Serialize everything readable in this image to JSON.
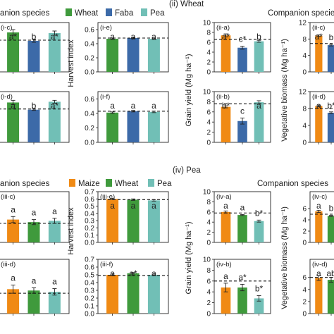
{
  "colors": {
    "Maize": "#f08a14",
    "Wheat": "#3f9a3c",
    "Faba": "#3c6aa8",
    "Pea": "#71bfb6"
  },
  "headers": [
    {
      "text": "(ii) Wheat"
    },
    {
      "text": "(iv) Pea"
    }
  ],
  "legends": [
    {
      "title": "anion species",
      "items": [
        "Wheat",
        "Faba",
        "Pea"
      ]
    },
    {
      "title": "Companion species",
      "items": []
    },
    {
      "title": "anion species",
      "items": [
        "Maize",
        "Wheat",
        "Pea"
      ]
    },
    {
      "title": "Companion species",
      "items": []
    }
  ],
  "ylabels": [
    "Harvest index",
    "Grain yield (Mg ha⁻¹)",
    "Vegetative biomass (Mg ha⁻¹)",
    "Harvest index",
    "Grain yield (Mg ha⁻¹)",
    "Vegetative biomass (Mg ha⁻¹)"
  ],
  "chart_data": [
    {
      "type": "bar",
      "panel": "(i-c)",
      "categories": [
        "Wheat",
        "Faba",
        "Pea"
      ],
      "values": [
        0.56,
        0.44,
        0.55
      ],
      "errors": [
        0.04,
        0.02,
        0.03
      ],
      "labels": [
        "a*",
        "b",
        "a*"
      ],
      "reference": 0.45,
      "yticks": [],
      "ylim": [
        0,
        0.7
      ]
    },
    {
      "type": "bar",
      "panel": "(i-e)",
      "categories": [
        "Wheat",
        "Faba",
        "Pea"
      ],
      "values": [
        0.47,
        0.48,
        0.47
      ],
      "errors": [
        0.01,
        0.01,
        0.01
      ],
      "labels": [
        "a",
        "a",
        "a"
      ],
      "reference": 0.48,
      "yticks": [
        "0.0",
        "0.2",
        "0.4",
        "0.6"
      ],
      "ylim": [
        0,
        0.7
      ]
    },
    {
      "type": "bar",
      "panel": "(ii-a)",
      "categories": [
        "Maize",
        "Faba",
        "Pea"
      ],
      "values": [
        7.4,
        4.9,
        6.2
      ],
      "errors": [
        0.3,
        0.3,
        0.2
      ],
      "labels": [
        "a*",
        "c*",
        "b"
      ],
      "reference": 6.6,
      "yticks": [
        "0",
        "2",
        "4",
        "6",
        "8",
        "10"
      ],
      "ylim": [
        0,
        10
      ]
    },
    {
      "type": "bar",
      "panel": "(ii-c)",
      "categories": [
        "Maize",
        "Faba",
        "Pea"
      ],
      "values": [
        8.8,
        6.5,
        6.7
      ],
      "errors": [
        0.2,
        0.2,
        0.2
      ],
      "labels": [
        "a*",
        "b",
        "b"
      ],
      "reference": 6.9,
      "yticks": [
        "0",
        "4",
        "8",
        "12"
      ],
      "ylim": [
        0,
        12
      ]
    },
    {
      "type": "bar",
      "panel": "(i-d)",
      "categories": [
        "Wheat",
        "Faba",
        "Pea"
      ],
      "values": [
        0.55,
        0.45,
        0.56
      ],
      "errors": [
        0.03,
        0.01,
        0.02
      ],
      "labels": [
        "a",
        "b",
        "a*"
      ],
      "reference": 0.46,
      "yticks": [],
      "ylim": [
        0,
        0.7
      ]
    },
    {
      "type": "bar",
      "panel": "(i-f)",
      "categories": [
        "Wheat",
        "Faba",
        "Pea"
      ],
      "values": [
        0.41,
        0.43,
        0.42
      ],
      "errors": [
        0.01,
        0.01,
        0.01
      ],
      "labels": [
        "a",
        "a",
        "a"
      ],
      "reference": 0.43,
      "yticks": [
        "0.0",
        "0.2",
        "0.4",
        "0.6"
      ],
      "ylim": [
        0,
        0.7
      ]
    },
    {
      "type": "bar",
      "panel": "(ii-b)",
      "categories": [
        "Maize",
        "Faba",
        "Pea"
      ],
      "values": [
        7.0,
        4.2,
        7.9
      ],
      "errors": [
        0.2,
        0.6,
        0.3
      ],
      "labels": [
        "b*",
        "c",
        "a"
      ],
      "reference": 7.6,
      "yticks": [
        "0",
        "2",
        "4",
        "6",
        "8",
        "10"
      ],
      "ylim": [
        0,
        10
      ]
    },
    {
      "type": "bar",
      "panel": "(ii-d)",
      "categories": [
        "Maize",
        "Faba",
        "Pea"
      ],
      "values": [
        8.6,
        7.0,
        7.7
      ],
      "errors": [
        0.2,
        0.2,
        0.2
      ],
      "labels": [
        "a",
        "b*",
        "a"
      ],
      "reference": 8.0,
      "yticks": [
        "0",
        "4",
        "8",
        "12"
      ],
      "ylim": [
        0,
        12
      ]
    },
    {
      "type": "bar",
      "panel": "(iii-c)",
      "categories": [
        "Maize",
        "Wheat",
        "Pea"
      ],
      "values": [
        0.09,
        0.08,
        0.085
      ],
      "errors": [
        0.012,
        0.01,
        0.01
      ],
      "labels": [
        "a",
        "a",
        "a"
      ],
      "reference": 0.075,
      "yticks": [],
      "ylim": [
        0,
        0.2
      ]
    },
    {
      "type": "bar",
      "panel": "(iii-e)",
      "categories": [
        "Maize",
        "Wheat",
        "Pea"
      ],
      "values": [
        0.6,
        0.59,
        0.58
      ],
      "errors": [
        0.01,
        0.01,
        0.01
      ],
      "labels": [
        "a",
        "a",
        "a"
      ],
      "reference": 0.59,
      "yticks": [
        "0.0",
        "0.1",
        "0.2",
        "0.3",
        "0.4",
        "0.5",
        "0.6",
        "0.7"
      ],
      "ylim": [
        0,
        0.7
      ]
    },
    {
      "type": "bar",
      "panel": "(iv-a)",
      "categories": [
        "Maize",
        "Wheat",
        "Pea"
      ],
      "values": [
        6.0,
        5.4,
        4.2
      ],
      "errors": [
        0.2,
        0.1,
        0.2
      ],
      "labels": [
        "a",
        "a",
        "b*"
      ],
      "reference": 5.8,
      "yticks": [
        "0",
        "2",
        "4",
        "6",
        "8",
        "10"
      ],
      "ylim": [
        0,
        10
      ]
    },
    {
      "type": "bar",
      "panel": "(iv-c)",
      "categories": [
        "Maize",
        "Wheat",
        "Pea"
      ],
      "values": [
        5.5,
        4.7,
        4.6
      ],
      "errors": [
        0.2,
        0.1,
        0.2
      ],
      "labels": [
        "a",
        "b",
        "b"
      ],
      "reference": 5.0,
      "yticks": [
        "0",
        "2",
        "4",
        "6"
      ],
      "ylim": [
        0,
        9
      ]
    },
    {
      "type": "bar",
      "panel": "(iii-d)",
      "categories": [
        "Maize",
        "Wheat",
        "Pea"
      ],
      "values": [
        0.09,
        0.085,
        0.08
      ],
      "errors": [
        0.015,
        0.01,
        0.012
      ],
      "labels": [
        "a",
        "a",
        "a"
      ],
      "reference": 0.075,
      "yticks": [],
      "ylim": [
        0,
        0.2
      ]
    },
    {
      "type": "bar",
      "panel": "(iii-f)",
      "categories": [
        "Maize",
        "Wheat",
        "Pea"
      ],
      "values": [
        0.5,
        0.52,
        0.5
      ],
      "errors": [
        0.01,
        0.01,
        0.01
      ],
      "labels": [
        "a",
        "a*",
        "a"
      ],
      "reference": 0.49,
      "yticks": [
        "0.0",
        "0.1",
        "0.2",
        "0.3",
        "0.4",
        "0.5",
        "0.6",
        "0.7"
      ],
      "ylim": [
        0,
        0.7
      ]
    },
    {
      "type": "bar",
      "panel": "(iv-b)",
      "categories": [
        "Maize",
        "Wheat",
        "Pea"
      ],
      "values": [
        4.8,
        4.8,
        2.8
      ],
      "errors": [
        0.8,
        0.6,
        0.5
      ],
      "labels": [
        "a",
        "a*",
        "b*"
      ],
      "reference": 6.0,
      "yticks": [
        "0",
        "2",
        "4",
        "6",
        "8",
        "10"
      ],
      "ylim": [
        0,
        10
      ]
    },
    {
      "type": "bar",
      "panel": "(iv-d)",
      "categories": [
        "Maize",
        "Wheat",
        "Pea"
      ],
      "values": [
        5.9,
        5.6,
        5.7
      ],
      "errors": [
        0.4,
        0.4,
        0.3
      ],
      "labels": [
        "a",
        "ab",
        "b"
      ],
      "reference": 6.0,
      "yticks": [
        "0",
        "2",
        "4",
        "6"
      ],
      "ylim": [
        0,
        9
      ]
    }
  ]
}
